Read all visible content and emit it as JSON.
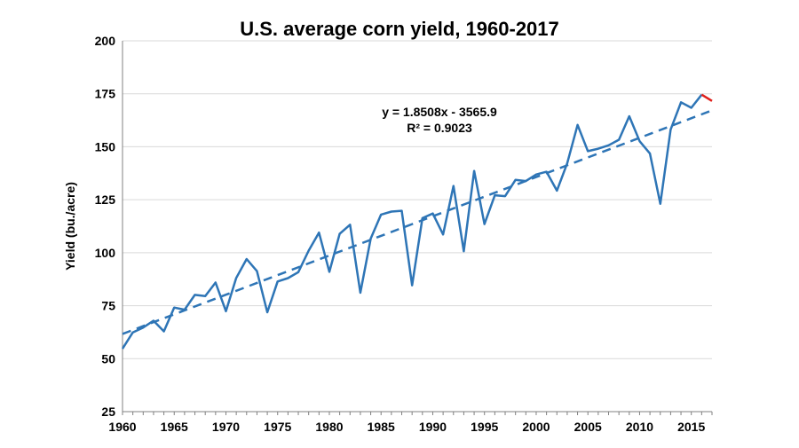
{
  "chart_data": {
    "type": "line",
    "title": "U.S. average corn yield, 1960-2017",
    "ylabel": "Yield (bu./acre)",
    "xlabel": "",
    "xlim": [
      1960,
      2017
    ],
    "ylim": [
      25,
      200
    ],
    "x_ticks": [
      1960,
      1965,
      1970,
      1975,
      1980,
      1985,
      1990,
      1995,
      2000,
      2005,
      2010,
      2015
    ],
    "y_ticks": [
      25,
      50,
      75,
      100,
      125,
      150,
      175,
      200
    ],
    "grid": "horizontal",
    "series": [
      {
        "type": "line",
        "color": "#2e75b6",
        "x": [
          1960,
          1961,
          1962,
          1963,
          1964,
          1965,
          1966,
          1967,
          1968,
          1969,
          1970,
          1971,
          1972,
          1973,
          1974,
          1975,
          1976,
          1977,
          1978,
          1979,
          1980,
          1981,
          1982,
          1983,
          1984,
          1985,
          1986,
          1987,
          1988,
          1989,
          1990,
          1991,
          1992,
          1993,
          1994,
          1995,
          1996,
          1997,
          1998,
          1999,
          2000,
          2001,
          2002,
          2003,
          2004,
          2005,
          2006,
          2007,
          2008,
          2009,
          2010,
          2011,
          2012,
          2013,
          2014,
          2015,
          2016
        ],
        "y": [
          54.7,
          62.4,
          64.7,
          67.9,
          62.9,
          74.1,
          73.1,
          80.1,
          79.5,
          85.9,
          72.4,
          88.1,
          97.0,
          91.3,
          71.9,
          86.4,
          88.0,
          90.8,
          101.0,
          109.5,
          91.0,
          108.9,
          113.2,
          81.1,
          106.7,
          118.0,
          119.4,
          119.8,
          84.6,
          116.3,
          118.5,
          108.6,
          131.5,
          100.7,
          138.6,
          113.5,
          127.1,
          126.7,
          134.4,
          133.8,
          136.9,
          138.2,
          129.3,
          142.2,
          160.3,
          147.9,
          149.1,
          150.7,
          153.3,
          164.4,
          152.6,
          146.8,
          123.1,
          158.1,
          171.0,
          168.4,
          174.6
        ]
      },
      {
        "type": "line",
        "color": "#e0201b",
        "x": [
          2016,
          2017
        ],
        "y": [
          174.6,
          171.6
        ]
      }
    ],
    "trendline": {
      "type": "linear",
      "slope": 1.8508,
      "intercept": -3565.9,
      "x_range": [
        1960,
        2017
      ],
      "color": "#2e75b6",
      "style": "dashed",
      "equation_label": "y = 1.8508x - 3565.9",
      "r2_label": "R² = 0.9023"
    }
  }
}
